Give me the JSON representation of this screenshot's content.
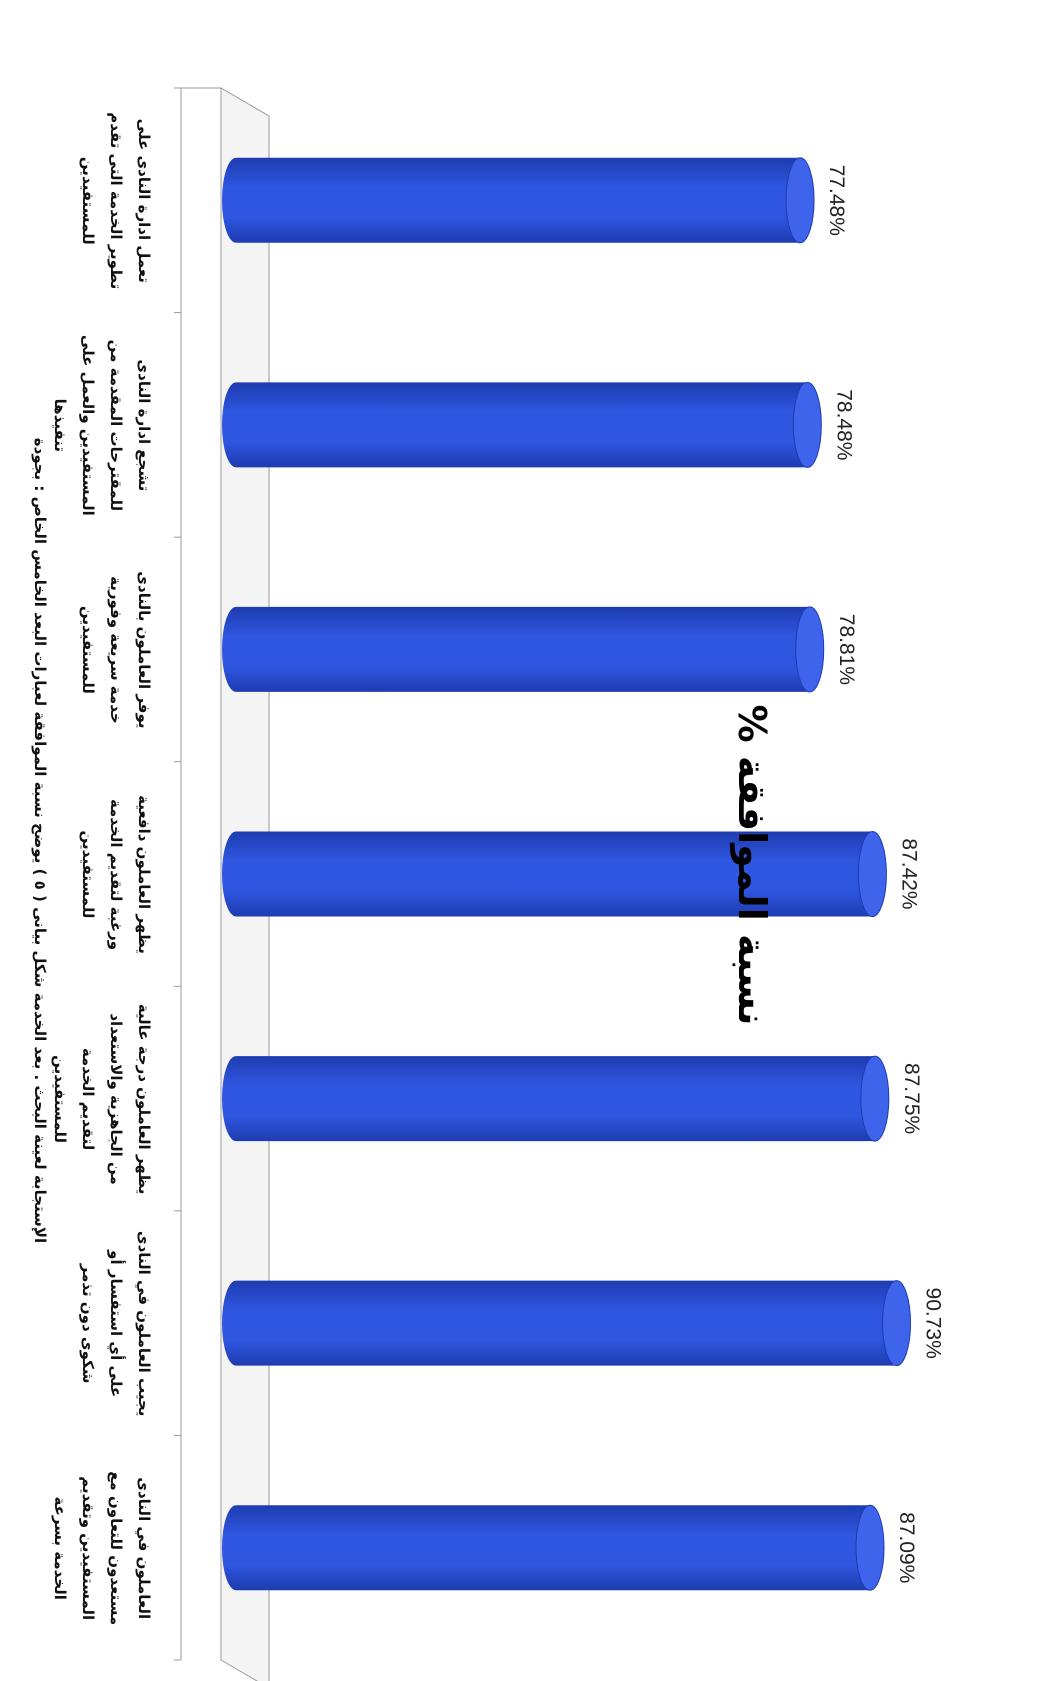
{
  "chart_data": {
    "type": "bar",
    "title": "نسبة الموافقة %",
    "orientation": "vertical-3d-cylinder",
    "categories": [
      "تعمل ادارة النادى على تطوير الخدمة التى تقدم للمستفيدين",
      "تشجع ادارة النادى للمقترحات المقدمة من المستفيدين والعمل على تنفيذها",
      "يوفر العاملون بالنادى خدمة سريعة وفورية للمستفيدين",
      "يظهر العاملون دافعية ورغبة لتقديم الخدمة للمستفيدين",
      "يظهر العاملون درجة عالية من الجاهزية والاستعداد لتقديم الخدمة للمستفيدين",
      "يجيب العاملون في النادى على أي استفسار أو شكوى دون تذمر",
      "العاملون في النادى مستعدون للتعاون مع المستفيدين وتقديم الخدمة بسرعة"
    ],
    "values": [
      77.48,
      78.48,
      78.81,
      87.42,
      87.75,
      90.73,
      87.09
    ],
    "value_labels": [
      "77.48%",
      "78.48%",
      "78.81%",
      "87.42%",
      "87.75%",
      "90.73%",
      "87.09%"
    ],
    "ylim": [
      0,
      100
    ],
    "grid": false,
    "bar_color": "#2f56e0",
    "bar_shade_color": "#1e3cb0"
  },
  "caption": "الإستجابة لعينة البحث . بعد الخدمة شكل بيانى ( ٥ ) يوضح نسبة الموافقة لعبارات البعد الخامس الخاص : بجودة"
}
